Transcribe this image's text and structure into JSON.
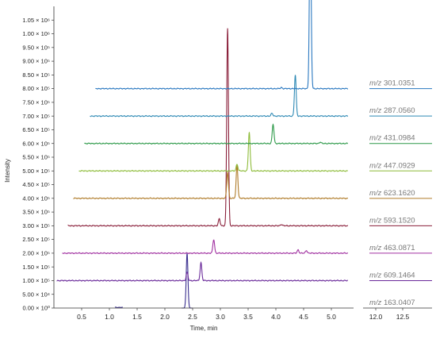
{
  "chart_data": {
    "type": "line",
    "title": "",
    "xlabel": "Time, min",
    "ylabel": "Intensity",
    "xlim": [
      0,
      5.4
    ],
    "ylim": [
      0,
      1100000
    ],
    "x_ticks": [
      "0.5",
      "1.0",
      "1.5",
      "2.0",
      "2.5",
      "3.0",
      "3.5",
      "4.0",
      "4.5",
      "5.0"
    ],
    "y_ticks": [
      "0.00 × 10⁰",
      "5.00 × 10⁴",
      "1.00 × 10⁵",
      "1.50 × 10⁵",
      "2.00 × 10⁵",
      "2.50 × 10⁵",
      "3.00 × 10⁵",
      "3.50 × 10⁵",
      "4.00 × 10⁵",
      "4.50 × 10⁵",
      "5.00 × 10⁵",
      "5.50 × 10⁵",
      "6.00 × 10⁵",
      "6.50 × 10⁵",
      "7.00 × 10⁵",
      "7.50 × 10⁵",
      "8.00 × 10⁵",
      "8.50 × 10⁵",
      "9.00 × 10⁵",
      "9.50 × 10⁵",
      "1.00 × 10⁶",
      "1.05 × 10⁶"
    ],
    "y_tick_values": [
      0,
      50000,
      100000,
      150000,
      200000,
      250000,
      300000,
      350000,
      400000,
      450000,
      500000,
      550000,
      600000,
      650000,
      700000,
      750000,
      800000,
      850000,
      900000,
      950000,
      1000000,
      1050000
    ],
    "right_axis_ticks": [
      "12.0",
      "12.5"
    ],
    "series": [
      {
        "mz_prefix": "m/z",
        "mz_value": "163.0407",
        "color": "#3a2f8f",
        "baseline": 0,
        "x_start": 1.1,
        "x_end": 1.25,
        "peaks": [
          [
            2.4,
            200000
          ]
        ],
        "short": true
      },
      {
        "mz_prefix": "m/z",
        "mz_value": "609.1464",
        "color": "#6a2a9a",
        "baseline": 100000,
        "x_start": 0.05,
        "x_end": 5.3,
        "peaks": [
          [
            2.4,
            30000
          ],
          [
            2.65,
            65000
          ]
        ]
      },
      {
        "mz_prefix": "m/z",
        "mz_value": "463.0871",
        "color": "#a030a0",
        "baseline": 200000,
        "x_start": 0.15,
        "x_end": 5.3,
        "peaks": [
          [
            2.88,
            50000
          ],
          [
            4.4,
            12000
          ],
          [
            4.55,
            10000
          ]
        ]
      },
      {
        "mz_prefix": "m/z",
        "mz_value": "593.1520",
        "color": "#8a1f3a",
        "baseline": 300000,
        "x_start": 0.25,
        "x_end": 5.3,
        "peaks": [
          [
            2.98,
            25000
          ],
          [
            3.13,
            720000
          ],
          [
            4.1,
            5000
          ]
        ]
      },
      {
        "mz_prefix": "m/z",
        "mz_value": "623.1620",
        "color": "#b07c2a",
        "baseline": 400000,
        "x_start": 0.35,
        "x_end": 5.3,
        "peaks": [
          [
            3.13,
            95000
          ],
          [
            3.3,
            120000
          ]
        ]
      },
      {
        "mz_prefix": "m/z",
        "mz_value": "447.0929",
        "color": "#8ebc3a",
        "baseline": 500000,
        "x_start": 0.45,
        "x_end": 5.3,
        "peaks": [
          [
            3.3,
            25000
          ],
          [
            3.52,
            140000
          ]
        ]
      },
      {
        "mz_prefix": "m/z",
        "mz_value": "431.0984",
        "color": "#2e9a4a",
        "baseline": 600000,
        "x_start": 0.55,
        "x_end": 5.3,
        "peaks": [
          [
            3.95,
            70000
          ],
          [
            4.8,
            5000
          ]
        ]
      },
      {
        "mz_prefix": "m/z",
        "mz_value": "287.0560",
        "color": "#2f8ab5",
        "baseline": 700000,
        "x_start": 0.65,
        "x_end": 5.3,
        "peaks": [
          [
            3.93,
            10000
          ],
          [
            4.35,
            150000
          ]
        ]
      },
      {
        "mz_prefix": "m/z",
        "mz_value": "301.0351",
        "color": "#2a78c0",
        "baseline": 800000,
        "x_start": 0.75,
        "x_end": 5.3,
        "peaks": [
          [
            4.62,
            650000
          ],
          [
            4.1,
            4000
          ]
        ]
      }
    ]
  }
}
